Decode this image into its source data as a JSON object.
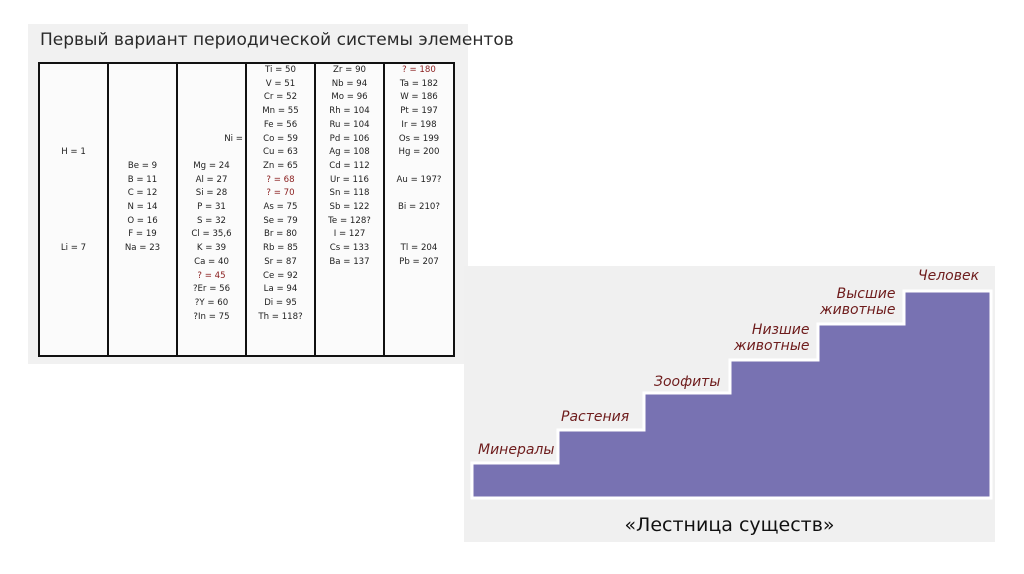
{
  "table": {
    "title": "Первый вариант периодической системы элементов",
    "columns": [
      [
        {
          "text": "H = 1"
        },
        {
          "text": "Li = 7"
        }
      ],
      [
        {
          "text": "Be = 9"
        },
        {
          "text": "B = 11"
        },
        {
          "text": "C = 12"
        },
        {
          "text": "N = 14"
        },
        {
          "text": "O = 16"
        },
        {
          "text": "F = 19"
        },
        {
          "text": "Na = 23"
        }
      ],
      [
        {
          "text": "Ni ="
        },
        {
          "text": "Mg = 24"
        },
        {
          "text": "Al = 27"
        },
        {
          "text": "Si = 28"
        },
        {
          "text": "P = 31"
        },
        {
          "text": "S = 32"
        },
        {
          "text": "Cl = 35,6"
        },
        {
          "text": "K = 39"
        },
        {
          "text": "Ca = 40"
        },
        {
          "text": "? = 45",
          "q": true
        },
        {
          "text": "?Er = 56"
        },
        {
          "text": "?Y = 60"
        },
        {
          "text": "?In = 75"
        }
      ],
      [
        {
          "text": "Ti = 50"
        },
        {
          "text": "V = 51"
        },
        {
          "text": "Cr = 52"
        },
        {
          "text": "Mn = 55"
        },
        {
          "text": "Fe = 56"
        },
        {
          "text": "Co = 59"
        },
        {
          "text": "Cu = 63"
        },
        {
          "text": "Zn = 65"
        },
        {
          "text": "? = 68",
          "q": true
        },
        {
          "text": "? = 70",
          "q": true
        },
        {
          "text": "As = 75"
        },
        {
          "text": "Se = 79"
        },
        {
          "text": "Br = 80"
        },
        {
          "text": "Rb = 85"
        },
        {
          "text": "Sr = 87"
        },
        {
          "text": "Ce = 92"
        },
        {
          "text": "La = 94"
        },
        {
          "text": "Di = 95"
        },
        {
          "text": "Th = 118?"
        }
      ],
      [
        {
          "text": "Zr = 90"
        },
        {
          "text": "Nb = 94"
        },
        {
          "text": "Mo = 96"
        },
        {
          "text": "Rh = 104"
        },
        {
          "text": "Ru = 104"
        },
        {
          "text": "Pd = 106"
        },
        {
          "text": "Ag = 108"
        },
        {
          "text": "Cd = 112"
        },
        {
          "text": "Ur = 116"
        },
        {
          "text": "Sn = 118"
        },
        {
          "text": "Sb = 122"
        },
        {
          "text": "Te = 128?"
        },
        {
          "text": "I = 127"
        },
        {
          "text": "Cs = 133"
        },
        {
          "text": "Ba = 137"
        }
      ],
      [
        {
          "text": "? = 180",
          "q": true
        },
        {
          "text": "Ta = 182"
        },
        {
          "text": "W = 186"
        },
        {
          "text": "Pt = 197"
        },
        {
          "text": "Ir = 198"
        },
        {
          "text": "Os = 199"
        },
        {
          "text": "Hg = 200"
        },
        {
          "text": "Au = 197?"
        },
        {
          "text": "Bi = 210?"
        },
        {
          "text": "Tl = 204"
        },
        {
          "text": "Pb = 207"
        }
      ]
    ]
  },
  "ladder": {
    "steps": [
      {
        "lines": [
          "Минералы"
        ]
      },
      {
        "lines": [
          "Растения"
        ]
      },
      {
        "lines": [
          "Зоофиты"
        ]
      },
      {
        "lines": [
          "Низшие",
          "животные"
        ]
      },
      {
        "lines": [
          "Высшие",
          "животные"
        ]
      },
      {
        "lines": [
          "Человек"
        ]
      }
    ],
    "caption": "«Лестница существ»",
    "fill_color": "#7872b2",
    "edge_color": "#ffffff",
    "label_color": "#6e1c1c"
  }
}
